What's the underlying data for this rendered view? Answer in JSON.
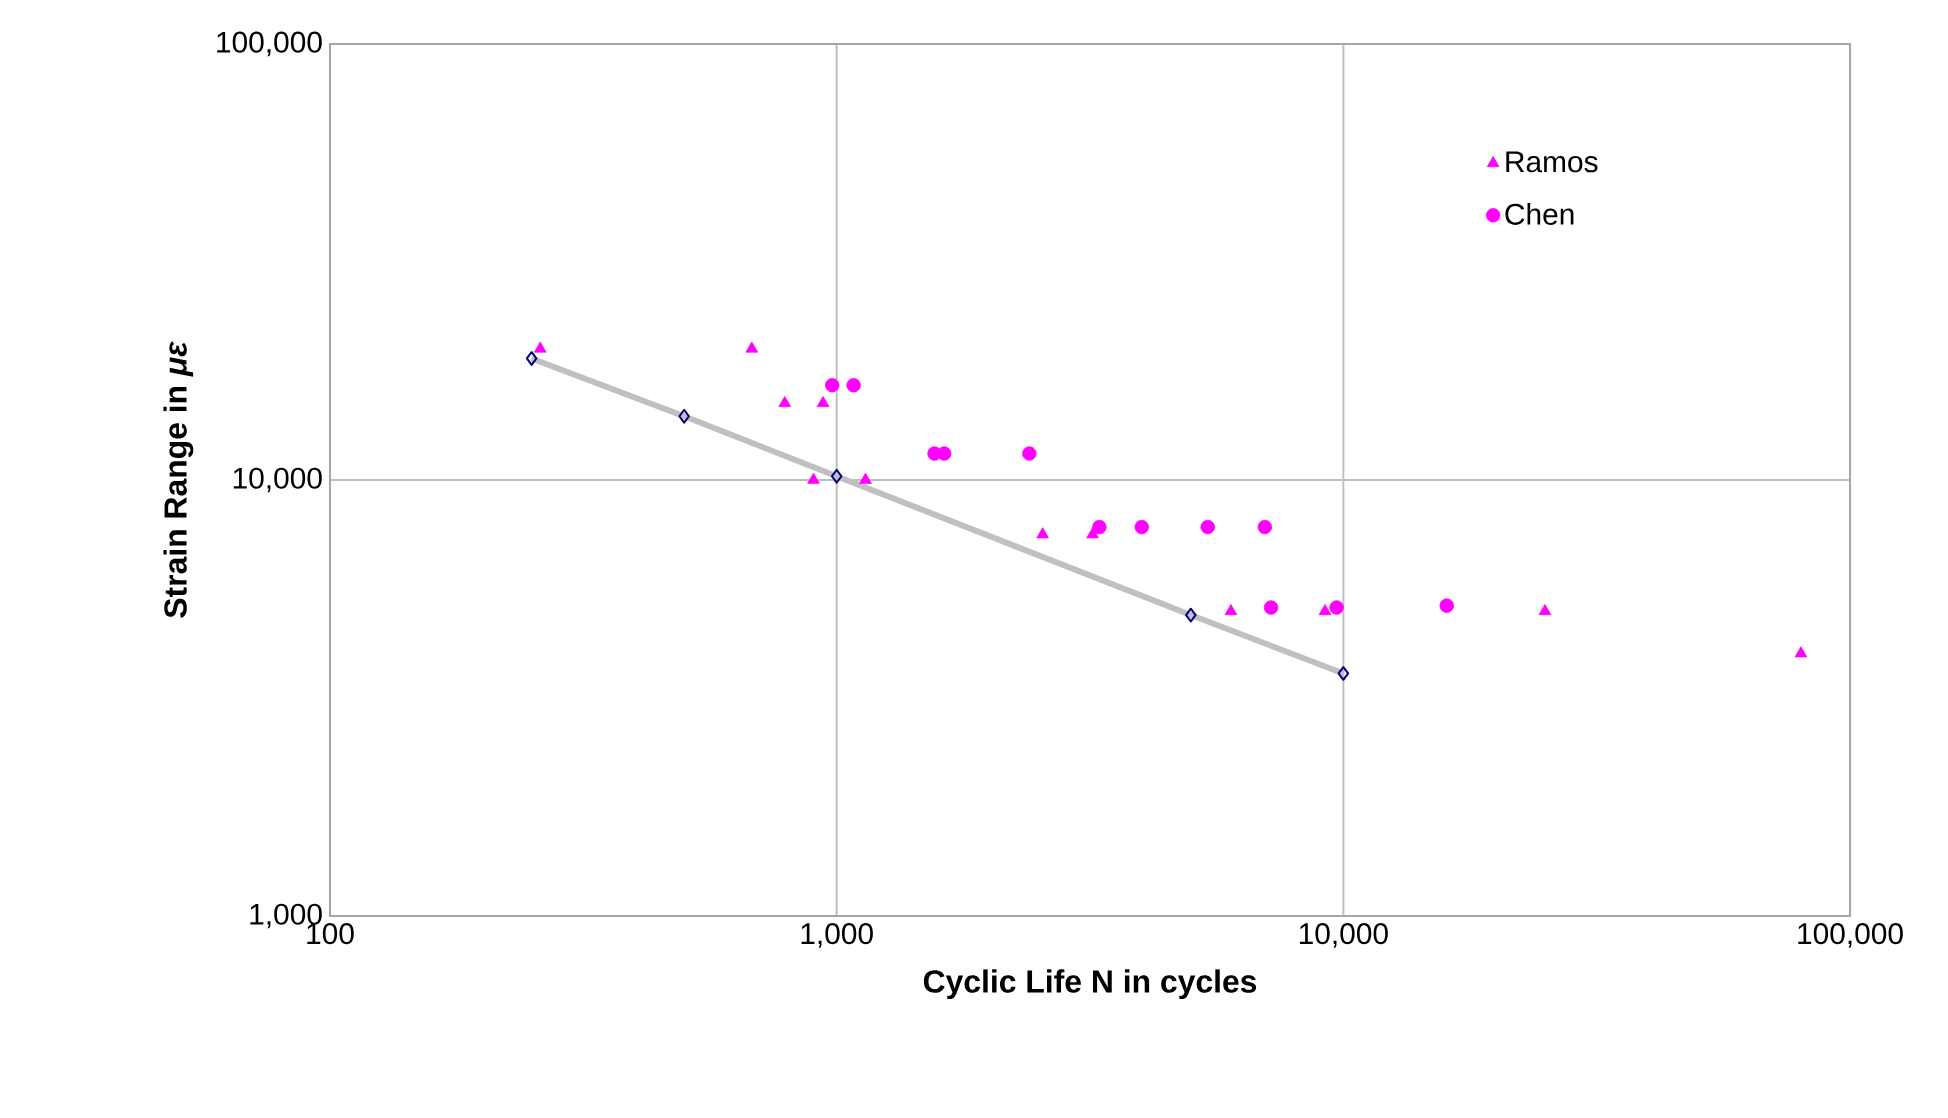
{
  "chart_data": {
    "type": "scatter",
    "xlabel": "Cyclic Life  N in cycles",
    "ylabel": "Strain Range in *με*",
    "log": "xy",
    "grid": true,
    "legend": "top right",
    "xlim": [
      100,
      100000
    ],
    "ylim": [
      1000,
      100000
    ],
    "xticks": [
      100,
      {
        "value": 1000,
        "label": "1,000"
      },
      {
        "value": 10000,
        "label": "10,000"
      },
      {
        "value": 100000,
        "label": "100,000"
      }
    ],
    "yticks": [
      {
        "value": 1000,
        "label": "1,000"
      },
      {
        "value": 10000,
        "label": "10,000"
      },
      {
        "value": 100000,
        "label": "100,000"
      }
    ],
    "series": [
      {
        "name": "Ramos",
        "color": "#ff00ff",
        "marker": "triangle",
        "x": [
          260,
          680,
          790,
          940,
          900,
          1140,
          2550,
          3200,
          6000,
          9200,
          25000,
          80000
        ],
        "values": [
          20000,
          20000,
          15000,
          15000,
          10000,
          10000,
          7500,
          7500,
          5000,
          5000,
          5000,
          4000
        ]
      },
      {
        "name": "Chen",
        "color": "#ff00ff",
        "marker": "circle",
        "x": [
          980,
          1080,
          1560,
          1630,
          2400,
          3300,
          4000,
          5400,
          7000,
          7200,
          9700,
          16000
        ],
        "values": [
          16500,
          16500,
          11500,
          11500,
          11500,
          7800,
          7800,
          7800,
          7800,
          5100,
          5100,
          5150
        ]
      },
      {
        "type": "line",
        "color": "#c0c0c0",
        "marker": "diamond",
        "x": [
          250,
          500,
          1000,
          5000,
          10000
        ],
        "values": [
          19000,
          14000,
          10200,
          4900,
          3600
        ]
      }
    ]
  }
}
